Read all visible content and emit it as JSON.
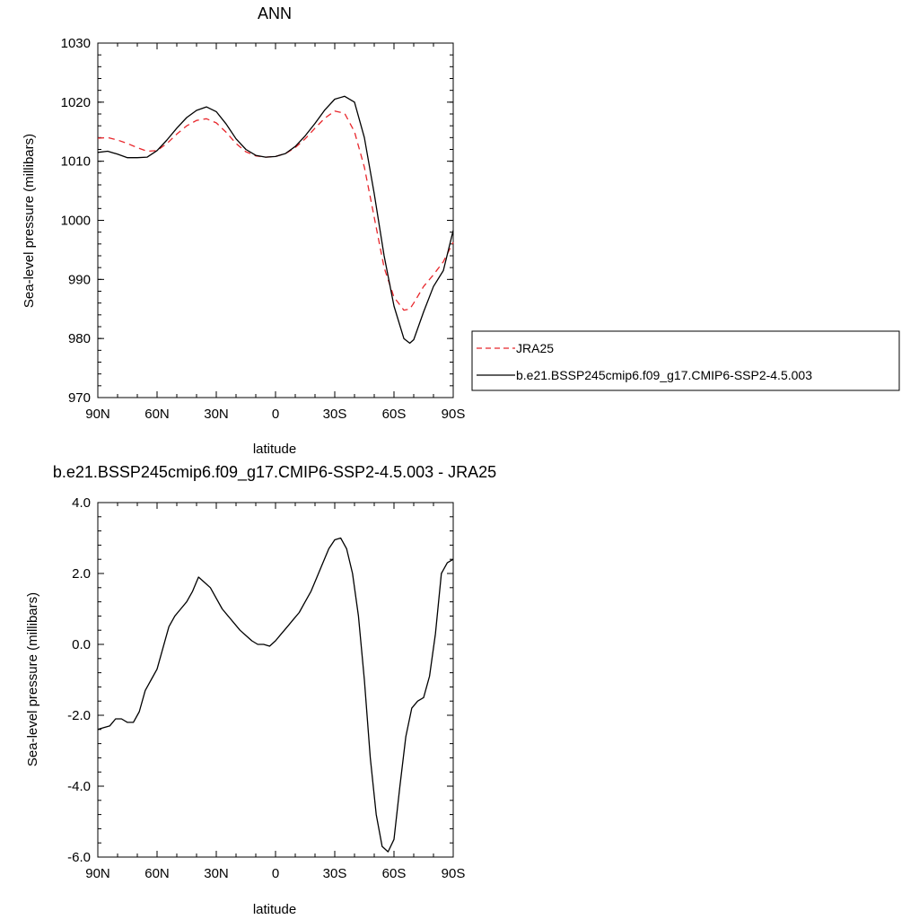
{
  "chart_data": [
    {
      "type": "line",
      "title": "ANN",
      "xlabel": "latitude",
      "ylabel": "Sea-level pressure (millibars)",
      "xlim": [
        90,
        -90
      ],
      "ylim": [
        970,
        1030
      ],
      "x_tick_values": [
        90,
        60,
        30,
        0,
        -30,
        -60,
        -90
      ],
      "x_tick_labels": [
        "90N",
        "60N",
        "30N",
        "0",
        "30S",
        "60S",
        "90S"
      ],
      "y_tick_values": [
        970,
        980,
        990,
        1000,
        1010,
        1020,
        1030
      ],
      "y_tick_labels": [
        "970",
        "980",
        "990",
        "1000",
        "1010",
        "1020",
        "1030"
      ],
      "legend_position": "right",
      "series": [
        {
          "name": "JRA25",
          "style": "dashed",
          "color": "#e8262b",
          "x": [
            90,
            85,
            80,
            75,
            70,
            65,
            60,
            55,
            50,
            45,
            40,
            35,
            30,
            25,
            20,
            15,
            10,
            5,
            0,
            -5,
            -10,
            -15,
            -20,
            -25,
            -30,
            -35,
            -40,
            -45,
            -50,
            -55,
            -60,
            -65,
            -68,
            -70,
            -75,
            -80,
            -85,
            -90
          ],
          "values": [
            1013.9,
            1014.0,
            1013.6,
            1013.0,
            1012.3,
            1011.7,
            1011.8,
            1013.0,
            1014.6,
            1016.0,
            1016.9,
            1017.2,
            1016.5,
            1014.9,
            1013.0,
            1011.6,
            1010.9,
            1010.7,
            1010.8,
            1011.3,
            1012.3,
            1013.8,
            1015.6,
            1017.3,
            1018.5,
            1018.1,
            1015.0,
            1009.0,
            1000.5,
            992.0,
            987.0,
            984.8,
            985.0,
            986.0,
            988.8,
            990.8,
            993.0,
            996.3
          ]
        },
        {
          "name": "b.e21.BSSP245cmip6.f09_g17.CMIP6-SSP2-4.5.003",
          "style": "solid",
          "color": "#000000",
          "x": [
            90,
            85,
            80,
            75,
            70,
            65,
            60,
            55,
            50,
            45,
            40,
            35,
            30,
            25,
            20,
            15,
            10,
            5,
            0,
            -5,
            -10,
            -15,
            -20,
            -25,
            -30,
            -35,
            -40,
            -45,
            -50,
            -55,
            -60,
            -65,
            -68,
            -70,
            -75,
            -80,
            -85,
            -90
          ],
          "values": [
            1011.5,
            1011.7,
            1011.2,
            1010.6,
            1010.6,
            1010.7,
            1011.8,
            1013.6,
            1015.6,
            1017.4,
            1018.6,
            1019.2,
            1018.4,
            1016.3,
            1013.8,
            1012.0,
            1011.0,
            1010.7,
            1010.8,
            1011.3,
            1012.5,
            1014.3,
            1016.4,
            1018.7,
            1020.5,
            1021.0,
            1020.0,
            1014.0,
            1004.5,
            994.0,
            985.5,
            980.0,
            979.2,
            979.8,
            984.5,
            988.8,
            991.5,
            998.3
          ]
        }
      ]
    },
    {
      "type": "line",
      "title": "b.e21.BSSP245cmip6.f09_g17.CMIP6-SSP2-4.5.003 - JRA25",
      "xlabel": "latitude",
      "ylabel": "Sea-level pressure (millibars)",
      "xlim": [
        90,
        -90
      ],
      "ylim": [
        -6,
        4
      ],
      "x_tick_values": [
        90,
        60,
        30,
        0,
        -30,
        -60,
        -90
      ],
      "x_tick_labels": [
        "90N",
        "60N",
        "30N",
        "0",
        "30S",
        "60S",
        "90S"
      ],
      "y_tick_values": [
        -6,
        -4,
        -2,
        0,
        2,
        4
      ],
      "y_tick_labels": [
        "-6.0",
        "-4.0",
        "-2.0",
        "0.0",
        "2.0",
        "4.0"
      ],
      "series": [
        {
          "style": "solid",
          "color": "#000000",
          "x": [
            90,
            87,
            84,
            81,
            78,
            75,
            72,
            69,
            66,
            63,
            60,
            57,
            54,
            51,
            48,
            45,
            42,
            39,
            36,
            33,
            30,
            27,
            24,
            21,
            18,
            15,
            12,
            9,
            6,
            3,
            0,
            -3,
            -6,
            -9,
            -12,
            -15,
            -18,
            -21,
            -24,
            -27,
            -30,
            -33,
            -36,
            -39,
            -42,
            -45,
            -48,
            -51,
            -54,
            -57,
            -60,
            -63,
            -66,
            -69,
            -72,
            -75,
            -78,
            -81,
            -84,
            -87,
            -90
          ],
          "values": [
            -2.4,
            -2.35,
            -2.3,
            -2.1,
            -2.1,
            -2.2,
            -2.2,
            -1.9,
            -1.3,
            -1.0,
            -0.7,
            -0.1,
            0.5,
            0.8,
            1.0,
            1.2,
            1.5,
            1.9,
            1.75,
            1.6,
            1.3,
            1.0,
            0.8,
            0.6,
            0.4,
            0.25,
            0.1,
            0.0,
            0.0,
            -0.05,
            0.1,
            0.3,
            0.5,
            0.7,
            0.9,
            1.2,
            1.5,
            1.9,
            2.3,
            2.7,
            2.95,
            3.0,
            2.7,
            2.0,
            0.8,
            -1.0,
            -3.2,
            -4.8,
            -5.7,
            -5.85,
            -5.5,
            -4.0,
            -2.6,
            -1.8,
            -1.6,
            -1.5,
            -0.9,
            0.3,
            2.0,
            2.3,
            2.4
          ]
        }
      ]
    }
  ]
}
